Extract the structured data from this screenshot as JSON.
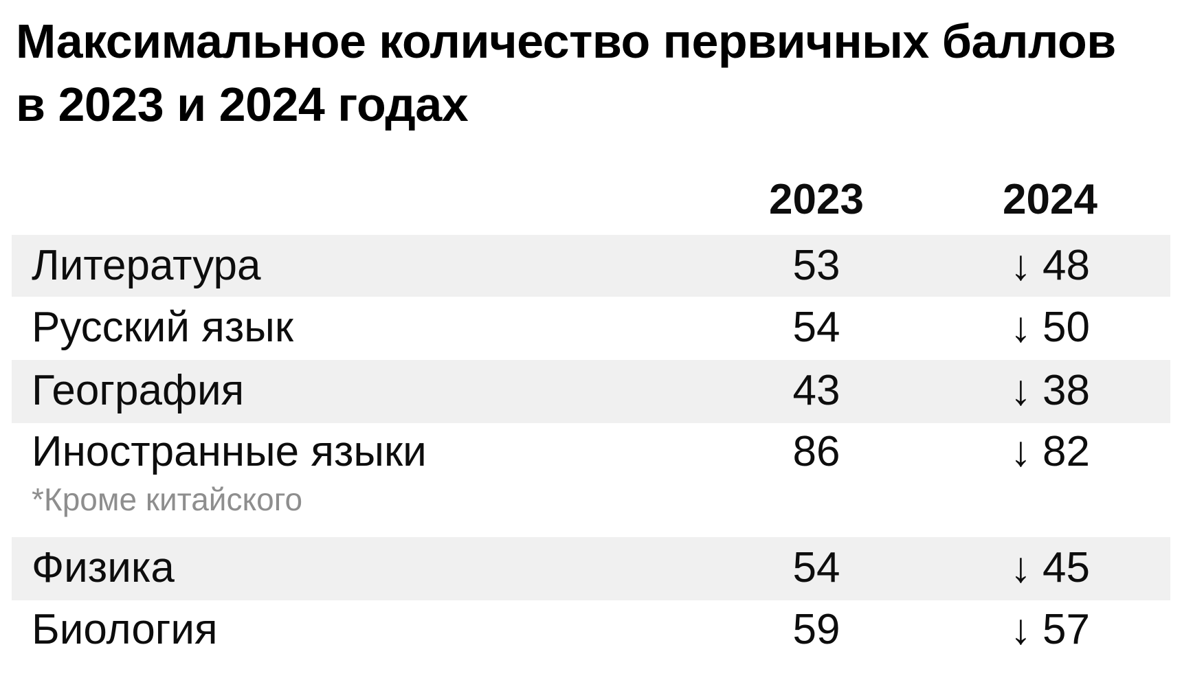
{
  "ui": {
    "title": {
      "line1": "Максимальное количество первичных баллов",
      "line2": "в 2023 и 2024 годах"
    },
    "arrow": "↓",
    "footnote": "*Кроме китайского"
  },
  "colors": {
    "background": "#ffffff",
    "stripe": "#f0f0f0",
    "text": "#0d0d0d",
    "title": "#000000",
    "footnote": "#8e8e8e"
  },
  "chart_data": {
    "type": "table",
    "title": "Максимальное количество первичных баллов в 2023 и 2024 годах",
    "categories": [
      "Литература",
      "Русский язык",
      "География",
      "Иностранные языки",
      "Физика",
      "Биология"
    ],
    "series": [
      {
        "name": "2023",
        "values": [
          53,
          54,
          43,
          86,
          54,
          59
        ]
      },
      {
        "name": "2024",
        "values": [
          48,
          50,
          38,
          82,
          45,
          57
        ]
      }
    ],
    "note": "*Кроме китайского",
    "trend_marker": "все значения 2024 отмечены стрелкой вниз (снижение)",
    "layout": "striped rows, subject column left-aligned, year columns centered"
  }
}
